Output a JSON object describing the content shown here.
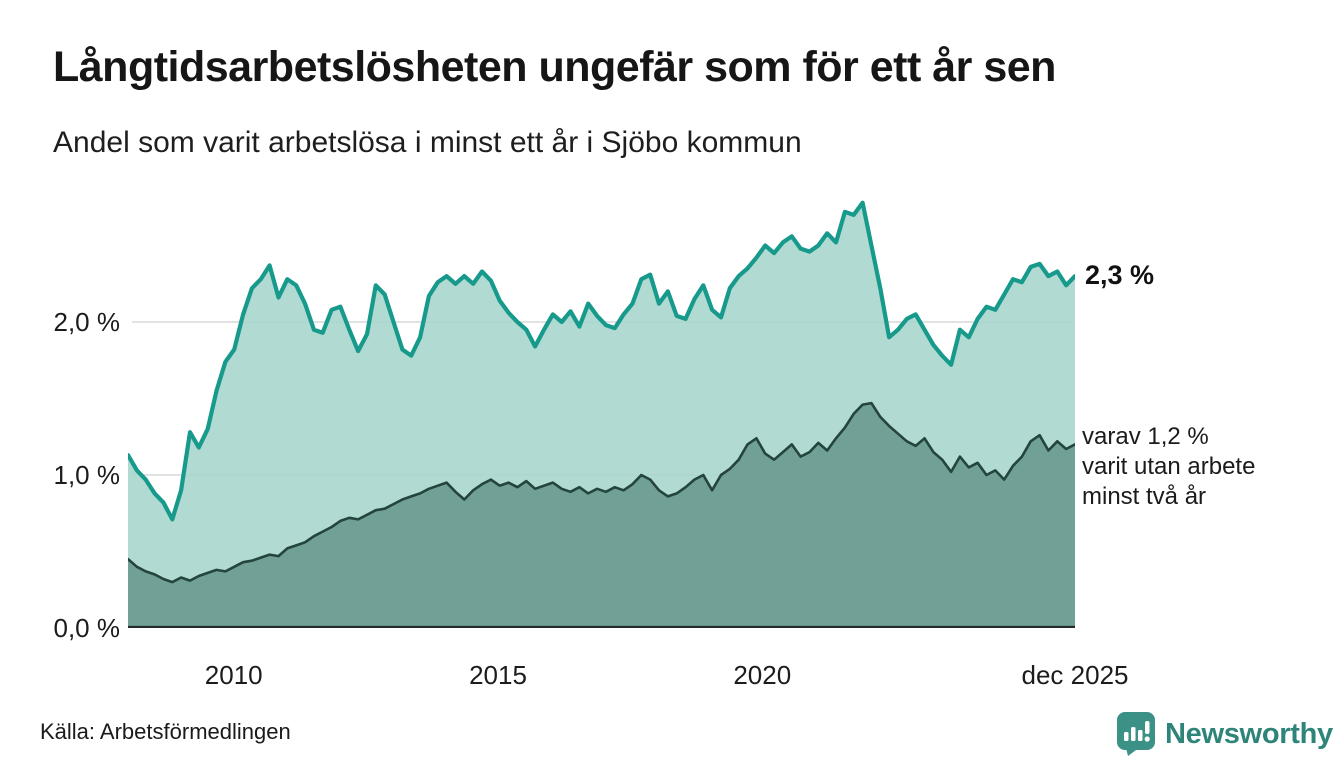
{
  "header": {
    "title": "Långtidsarbetslösheten ungefär som för ett år sen",
    "subtitle": "Andel som varit arbetslösa i minst ett år i Sjöbo kommun"
  },
  "chart_data": {
    "type": "area",
    "title": "Långtidsarbetslösheten ungefär som för ett år sen",
    "subtitle": "Andel som varit arbetslösa i minst ett år i Sjöbo kommun",
    "unit": "%",
    "x_start": 2008.0,
    "x_end": 2025.9167,
    "ylim": [
      0,
      2.9
    ],
    "grid": "horizontal",
    "legend_position": "end-of-line-labels",
    "colors": {
      "total_line": "#179a8c",
      "total_fill": "#a8d6cd",
      "two_year_line": "#24443e",
      "two_year_fill": "#53847a",
      "gridline": "#d8d8d8",
      "baseline": "#232b29"
    },
    "series": [
      {
        "name": "Andel arbetslösa minst ett år",
        "last_value": 2.3,
        "values": [
          1.13,
          1.03,
          0.97,
          0.88,
          0.82,
          0.71,
          0.9,
          1.28,
          1.18,
          1.3,
          1.55,
          1.74,
          1.82,
          2.05,
          2.22,
          2.28,
          2.37,
          2.16,
          2.28,
          2.24,
          2.12,
          1.95,
          1.93,
          2.08,
          2.1,
          1.95,
          1.81,
          1.92,
          2.24,
          2.18,
          2.0,
          1.82,
          1.78,
          1.9,
          2.17,
          2.26,
          2.3,
          2.25,
          2.3,
          2.25,
          2.33,
          2.27,
          2.14,
          2.06,
          2.0,
          1.95,
          1.84,
          1.95,
          2.05,
          2.0,
          2.07,
          1.97,
          2.12,
          2.04,
          1.98,
          1.96,
          2.05,
          2.12,
          2.28,
          2.31,
          2.12,
          2.2,
          2.04,
          2.02,
          2.15,
          2.24,
          2.08,
          2.03,
          2.22,
          2.3,
          2.35,
          2.42,
          2.5,
          2.45,
          2.52,
          2.56,
          2.48,
          2.46,
          2.5,
          2.58,
          2.52,
          2.72,
          2.7,
          2.78,
          2.5,
          2.22,
          1.9,
          1.95,
          2.02,
          2.05,
          1.95,
          1.85,
          1.78,
          1.72,
          1.95,
          1.9,
          2.02,
          2.1,
          2.08,
          2.18,
          2.28,
          2.26,
          2.36,
          2.38,
          2.3,
          2.33,
          2.24,
          2.3
        ]
      },
      {
        "name": "varav utan arbete minst två år",
        "last_value": 1.2,
        "values": [
          0.45,
          0.4,
          0.37,
          0.35,
          0.32,
          0.3,
          0.33,
          0.31,
          0.34,
          0.36,
          0.38,
          0.37,
          0.4,
          0.43,
          0.44,
          0.46,
          0.48,
          0.47,
          0.52,
          0.54,
          0.56,
          0.6,
          0.63,
          0.66,
          0.7,
          0.72,
          0.71,
          0.74,
          0.77,
          0.78,
          0.81,
          0.84,
          0.86,
          0.88,
          0.91,
          0.93,
          0.95,
          0.89,
          0.84,
          0.9,
          0.94,
          0.97,
          0.93,
          0.95,
          0.92,
          0.96,
          0.91,
          0.93,
          0.95,
          0.91,
          0.89,
          0.92,
          0.88,
          0.91,
          0.89,
          0.92,
          0.9,
          0.94,
          1.0,
          0.97,
          0.9,
          0.86,
          0.88,
          0.92,
          0.97,
          1.0,
          0.9,
          1.0,
          1.04,
          1.1,
          1.2,
          1.24,
          1.14,
          1.1,
          1.15,
          1.2,
          1.12,
          1.15,
          1.21,
          1.16,
          1.24,
          1.31,
          1.4,
          1.46,
          1.47,
          1.38,
          1.32,
          1.27,
          1.22,
          1.19,
          1.24,
          1.15,
          1.1,
          1.02,
          1.12,
          1.05,
          1.08,
          1.0,
          1.03,
          0.97,
          1.06,
          1.12,
          1.22,
          1.26,
          1.16,
          1.22,
          1.17,
          1.2
        ]
      }
    ],
    "yticks": [
      {
        "label": "0,0 %",
        "value": 0
      },
      {
        "label": "1,0 %",
        "value": 1
      },
      {
        "label": "2,0 %",
        "value": 2
      }
    ],
    "xticks": [
      {
        "label": "2010",
        "year": 2010
      },
      {
        "label": "2015",
        "year": 2015
      },
      {
        "label": "2020",
        "year": 2020
      },
      {
        "label": "dec 2025",
        "year": 2025.9167
      }
    ],
    "annotations": {
      "last_total": "2,3 %",
      "line1": "varav 1,2 %",
      "line2": "varit utan arbete",
      "line3": "minst två år"
    }
  },
  "footer": {
    "source": "Källa: Arbetsförmedlingen",
    "brand": "Newsworthy"
  }
}
